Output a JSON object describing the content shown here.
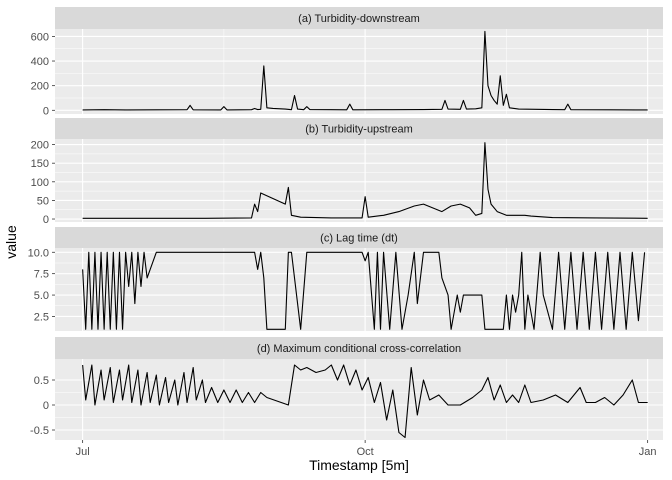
{
  "chart_data": {
    "type": "line",
    "xlabel": "Timestamp [5m]",
    "ylabel": "value",
    "x_ticks": [
      "Jul",
      "Oct",
      "Jan"
    ],
    "x_range": [
      "2021-06-22",
      "2022-01-06"
    ],
    "grid": true,
    "legend": "none",
    "line_color": "#000000",
    "panel_background": "#ebebeb",
    "strip_background": "#d9d9d9",
    "panels": [
      {
        "title": "(a) Turbidity-downstream",
        "ylim": [
          -30,
          660
        ],
        "y_ticks": [
          0,
          200,
          400,
          600
        ],
        "series_points": [
          [
            "2021-07-01",
            3
          ],
          [
            "2021-07-08",
            5
          ],
          [
            "2021-07-15",
            3
          ],
          [
            "2021-07-25",
            4
          ],
          [
            "2021-08-04",
            5
          ],
          [
            "2021-08-05",
            40
          ],
          [
            "2021-08-06",
            4
          ],
          [
            "2021-08-15",
            3
          ],
          [
            "2021-08-16",
            30
          ],
          [
            "2021-08-17",
            3
          ],
          [
            "2021-08-25",
            5
          ],
          [
            "2021-08-26",
            15
          ],
          [
            "2021-08-27",
            6
          ],
          [
            "2021-08-28",
            8
          ],
          [
            "2021-08-29",
            360
          ],
          [
            "2021-08-30",
            20
          ],
          [
            "2021-09-01",
            15
          ],
          [
            "2021-09-05",
            10
          ],
          [
            "2021-09-07",
            5
          ],
          [
            "2021-09-08",
            120
          ],
          [
            "2021-09-09",
            10
          ],
          [
            "2021-09-11",
            5
          ],
          [
            "2021-09-12",
            30
          ],
          [
            "2021-09-13",
            6
          ],
          [
            "2021-09-20",
            5
          ],
          [
            "2021-09-25",
            4
          ],
          [
            "2021-09-26",
            50
          ],
          [
            "2021-09-27",
            4
          ],
          [
            "2021-10-10",
            5
          ],
          [
            "2021-10-20",
            6
          ],
          [
            "2021-10-26",
            8
          ],
          [
            "2021-10-27",
            80
          ],
          [
            "2021-10-28",
            10
          ],
          [
            "2021-11-01",
            8
          ],
          [
            "2021-11-02",
            80
          ],
          [
            "2021-11-03",
            10
          ],
          [
            "2021-11-06",
            12
          ],
          [
            "2021-11-08",
            20
          ],
          [
            "2021-11-09",
            640
          ],
          [
            "2021-11-10",
            200
          ],
          [
            "2021-11-11",
            120
          ],
          [
            "2021-11-12",
            80
          ],
          [
            "2021-11-13",
            50
          ],
          [
            "2021-11-14",
            280
          ],
          [
            "2021-11-15",
            40
          ],
          [
            "2021-11-16",
            130
          ],
          [
            "2021-11-17",
            20
          ],
          [
            "2021-11-20",
            10
          ],
          [
            "2021-12-01",
            6
          ],
          [
            "2021-12-05",
            5
          ],
          [
            "2021-12-06",
            50
          ],
          [
            "2021-12-07",
            5
          ],
          [
            "2021-12-20",
            4
          ],
          [
            "2022-01-01",
            3
          ]
        ]
      },
      {
        "title": "(b) Turbidity-upstream",
        "ylim": [
          -8,
          215
        ],
        "y_ticks": [
          0,
          50,
          100,
          150,
          200
        ],
        "series_points": [
          [
            "2021-07-01",
            2
          ],
          [
            "2021-07-20",
            2
          ],
          [
            "2021-08-10",
            2
          ],
          [
            "2021-08-25",
            3
          ],
          [
            "2021-08-26",
            40
          ],
          [
            "2021-08-27",
            20
          ],
          [
            "2021-08-28",
            70
          ],
          [
            "2021-09-05",
            40
          ],
          [
            "2021-09-06",
            85
          ],
          [
            "2021-09-07",
            10
          ],
          [
            "2021-09-10",
            5
          ],
          [
            "2021-09-20",
            3
          ],
          [
            "2021-09-30",
            3
          ],
          [
            "2021-10-01",
            60
          ],
          [
            "2021-10-02",
            5
          ],
          [
            "2021-10-07",
            10
          ],
          [
            "2021-10-12",
            20
          ],
          [
            "2021-10-17",
            35
          ],
          [
            "2021-10-20",
            40
          ],
          [
            "2021-10-23",
            30
          ],
          [
            "2021-10-26",
            20
          ],
          [
            "2021-10-29",
            35
          ],
          [
            "2021-11-01",
            40
          ],
          [
            "2021-11-04",
            30
          ],
          [
            "2021-11-06",
            10
          ],
          [
            "2021-11-08",
            15
          ],
          [
            "2021-11-09",
            205
          ],
          [
            "2021-11-10",
            80
          ],
          [
            "2021-11-11",
            40
          ],
          [
            "2021-11-13",
            20
          ],
          [
            "2021-11-16",
            10
          ],
          [
            "2021-11-22",
            10
          ],
          [
            "2021-11-24",
            8
          ],
          [
            "2021-12-01",
            4
          ],
          [
            "2021-12-15",
            3
          ],
          [
            "2022-01-01",
            2
          ]
        ]
      },
      {
        "title": "(c) Lag time (dt)",
        "ylim": [
          0.8,
          10.5
        ],
        "y_ticks": [
          2.5,
          5.0,
          7.5,
          10.0
        ],
        "series_points": [
          [
            "2021-07-01",
            8
          ],
          [
            "2021-07-02",
            1
          ],
          [
            "2021-07-03",
            10
          ],
          [
            "2021-07-04",
            1
          ],
          [
            "2021-07-05",
            10
          ],
          [
            "2021-07-06",
            1
          ],
          [
            "2021-07-07",
            10
          ],
          [
            "2021-07-08",
            1
          ],
          [
            "2021-07-09",
            10
          ],
          [
            "2021-07-10",
            1
          ],
          [
            "2021-07-11",
            10
          ],
          [
            "2021-07-12",
            1
          ],
          [
            "2021-07-13",
            10
          ],
          [
            "2021-07-14",
            1
          ],
          [
            "2021-07-15",
            10
          ],
          [
            "2021-07-16",
            6
          ],
          [
            "2021-07-17",
            10
          ],
          [
            "2021-07-18",
            4
          ],
          [
            "2021-07-19",
            10
          ],
          [
            "2021-07-20",
            6
          ],
          [
            "2021-07-21",
            10
          ],
          [
            "2021-07-22",
            7
          ],
          [
            "2021-07-25",
            10
          ],
          [
            "2021-08-26",
            10
          ],
          [
            "2021-08-27",
            8
          ],
          [
            "2021-08-28",
            10
          ],
          [
            "2021-08-29",
            7
          ],
          [
            "2021-08-30",
            1
          ],
          [
            "2021-09-05",
            1
          ],
          [
            "2021-09-06",
            10
          ],
          [
            "2021-09-07",
            10
          ],
          [
            "2021-09-10",
            1
          ],
          [
            "2021-09-12",
            10
          ],
          [
            "2021-09-30",
            10
          ],
          [
            "2021-10-01",
            9
          ],
          [
            "2021-10-02",
            10
          ],
          [
            "2021-10-04",
            1
          ],
          [
            "2021-10-05",
            10
          ],
          [
            "2021-10-06",
            1
          ],
          [
            "2021-10-07",
            10
          ],
          [
            "2021-10-09",
            1
          ],
          [
            "2021-10-11",
            10
          ],
          [
            "2021-10-13",
            1
          ],
          [
            "2021-10-15",
            5
          ],
          [
            "2021-10-17",
            10
          ],
          [
            "2021-10-18",
            4
          ],
          [
            "2021-10-20",
            10
          ],
          [
            "2021-10-25",
            10
          ],
          [
            "2021-10-26",
            7
          ],
          [
            "2021-10-28",
            5
          ],
          [
            "2021-10-29",
            1
          ],
          [
            "2021-10-31",
            5
          ],
          [
            "2021-11-01",
            3
          ],
          [
            "2021-11-02",
            5
          ],
          [
            "2021-11-08",
            5
          ],
          [
            "2021-11-09",
            1
          ],
          [
            "2021-11-15",
            1
          ],
          [
            "2021-11-16",
            5
          ],
          [
            "2021-11-17",
            1
          ],
          [
            "2021-11-18",
            5
          ],
          [
            "2021-11-19",
            3
          ],
          [
            "2021-11-20",
            5
          ],
          [
            "2021-11-21",
            10
          ],
          [
            "2021-11-22",
            1
          ],
          [
            "2021-11-23",
            5
          ],
          [
            "2021-11-25",
            1
          ],
          [
            "2021-11-27",
            10
          ],
          [
            "2021-11-28",
            5
          ],
          [
            "2021-12-01",
            1
          ],
          [
            "2021-12-03",
            10
          ],
          [
            "2021-12-05",
            1
          ],
          [
            "2021-12-07",
            10
          ],
          [
            "2021-12-09",
            1
          ],
          [
            "2021-12-11",
            10
          ],
          [
            "2021-12-13",
            1
          ],
          [
            "2021-12-15",
            10
          ],
          [
            "2021-12-17",
            1
          ],
          [
            "2021-12-19",
            10
          ],
          [
            "2021-12-21",
            1
          ],
          [
            "2021-12-23",
            10
          ],
          [
            "2021-12-25",
            1
          ],
          [
            "2021-12-27",
            10
          ],
          [
            "2021-12-29",
            2
          ],
          [
            "2021-12-31",
            10
          ]
        ]
      },
      {
        "title": "(d) Maximum conditional cross-correlation",
        "ylim": [
          -0.7,
          0.92
        ],
        "y_ticks": [
          -0.5,
          0.0,
          0.5
        ],
        "series_points": [
          [
            "2021-07-01",
            0.8
          ],
          [
            "2021-07-02",
            0.1
          ],
          [
            "2021-07-04",
            0.8
          ],
          [
            "2021-07-05",
            0.0
          ],
          [
            "2021-07-07",
            0.7
          ],
          [
            "2021-07-08",
            0.1
          ],
          [
            "2021-07-10",
            0.75
          ],
          [
            "2021-07-11",
            0.05
          ],
          [
            "2021-07-13",
            0.7
          ],
          [
            "2021-07-14",
            0.1
          ],
          [
            "2021-07-16",
            0.8
          ],
          [
            "2021-07-17",
            0.05
          ],
          [
            "2021-07-19",
            0.7
          ],
          [
            "2021-07-20",
            0.0
          ],
          [
            "2021-07-22",
            0.65
          ],
          [
            "2021-07-23",
            0.05
          ],
          [
            "2021-07-25",
            0.6
          ],
          [
            "2021-07-26",
            0.0
          ],
          [
            "2021-07-28",
            0.55
          ],
          [
            "2021-07-29",
            0.05
          ],
          [
            "2021-07-31",
            0.5
          ],
          [
            "2021-08-01",
            0.0
          ],
          [
            "2021-08-03",
            0.65
          ],
          [
            "2021-08-04",
            0.05
          ],
          [
            "2021-08-06",
            0.75
          ],
          [
            "2021-08-07",
            0.1
          ],
          [
            "2021-08-09",
            0.5
          ],
          [
            "2021-08-10",
            0.05
          ],
          [
            "2021-08-12",
            0.35
          ],
          [
            "2021-08-14",
            0.05
          ],
          [
            "2021-08-16",
            0.3
          ],
          [
            "2021-08-18",
            0.05
          ],
          [
            "2021-08-20",
            0.3
          ],
          [
            "2021-08-22",
            0.05
          ],
          [
            "2021-08-24",
            0.25
          ],
          [
            "2021-08-26",
            0.05
          ],
          [
            "2021-08-28",
            0.25
          ],
          [
            "2021-08-30",
            0.15
          ],
          [
            "2021-09-06",
            0.0
          ],
          [
            "2021-09-08",
            0.8
          ],
          [
            "2021-09-10",
            0.7
          ],
          [
            "2021-09-12",
            0.75
          ],
          [
            "2021-09-15",
            0.65
          ],
          [
            "2021-09-18",
            0.7
          ],
          [
            "2021-09-20",
            0.8
          ],
          [
            "2021-09-22",
            0.5
          ],
          [
            "2021-09-24",
            0.8
          ],
          [
            "2021-09-26",
            0.4
          ],
          [
            "2021-09-28",
            0.7
          ],
          [
            "2021-09-30",
            0.3
          ],
          [
            "2021-10-02",
            0.55
          ],
          [
            "2021-10-04",
            0.05
          ],
          [
            "2021-10-06",
            0.45
          ],
          [
            "2021-10-08",
            -0.3
          ],
          [
            "2021-10-10",
            0.3
          ],
          [
            "2021-10-12",
            -0.55
          ],
          [
            "2021-10-14",
            -0.65
          ],
          [
            "2021-10-16",
            0.75
          ],
          [
            "2021-10-18",
            -0.2
          ],
          [
            "2021-10-20",
            0.5
          ],
          [
            "2021-10-22",
            0.1
          ],
          [
            "2021-10-25",
            0.2
          ],
          [
            "2021-10-28",
            0.0
          ],
          [
            "2021-11-01",
            0.0
          ],
          [
            "2021-11-05",
            0.15
          ],
          [
            "2021-11-08",
            0.3
          ],
          [
            "2021-11-10",
            0.55
          ],
          [
            "2021-11-12",
            0.1
          ],
          [
            "2021-11-14",
            0.4
          ],
          [
            "2021-11-16",
            0.05
          ],
          [
            "2021-11-18",
            0.2
          ],
          [
            "2021-11-20",
            0.05
          ],
          [
            "2021-11-22",
            0.4
          ],
          [
            "2021-11-24",
            0.05
          ],
          [
            "2021-11-28",
            0.1
          ],
          [
            "2021-12-02",
            0.2
          ],
          [
            "2021-12-06",
            0.05
          ],
          [
            "2021-12-10",
            0.35
          ],
          [
            "2021-12-12",
            0.05
          ],
          [
            "2021-12-15",
            0.05
          ],
          [
            "2021-12-18",
            0.15
          ],
          [
            "2021-12-21",
            0.0
          ],
          [
            "2021-12-24",
            0.2
          ],
          [
            "2021-12-27",
            0.5
          ],
          [
            "2021-12-29",
            0.05
          ],
          [
            "2022-01-01",
            0.05
          ]
        ]
      }
    ]
  }
}
